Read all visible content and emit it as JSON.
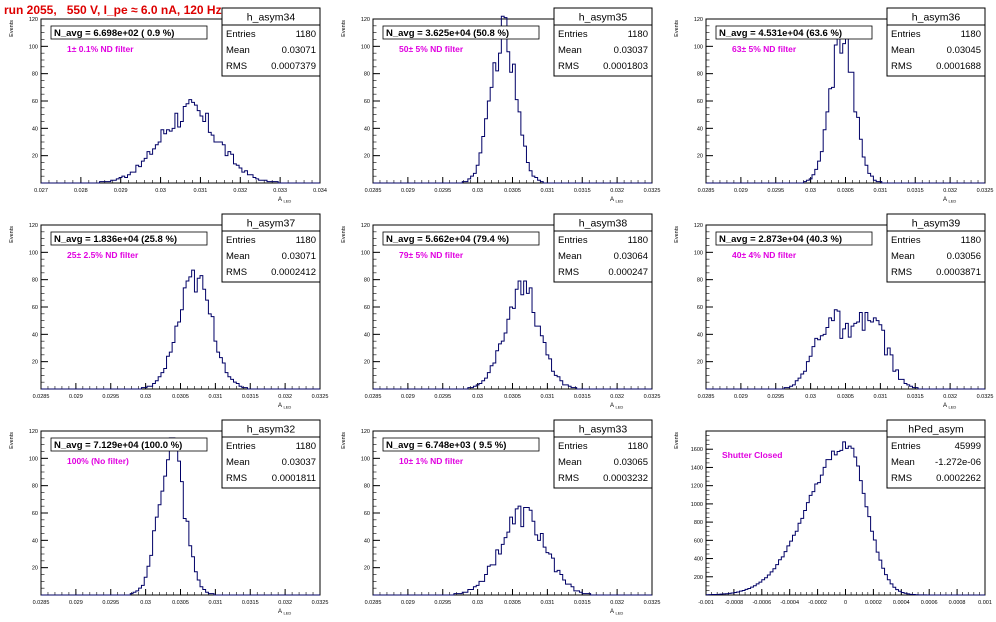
{
  "title": "run 2055,   550 V, I_pe ≈ 6.0 nA, 120 Hz",
  "stat_labels": {
    "entries": "Entries",
    "mean": "Mean",
    "rms": "RMS"
  },
  "chart_data": [
    {
      "type": "bar",
      "name": "h_asym34",
      "header": "N_avg = 6.698e+02 ( 0.9 %)",
      "annotation": "1± 0.1% ND filter",
      "stats": {
        "entries": "1180",
        "mean": "0.03071",
        "rms": "0.0007379"
      },
      "ylabel": "Events",
      "xlabel": "A_LED",
      "xlim": [
        0.027,
        0.034
      ],
      "ylim": [
        0,
        120
      ],
      "xticks": [
        0.027,
        0.028,
        0.029,
        0.03,
        0.031,
        0.032,
        0.033,
        0.034
      ],
      "xtick_labels": [
        "0.027",
        "0.028",
        "0.029",
        "0.03",
        "0.031",
        "0.032",
        "0.033",
        "0.034"
      ],
      "yticks": [
        20,
        40,
        60,
        80,
        100,
        120
      ],
      "dist": {
        "shape": "gauss",
        "mean": 0.03071,
        "rms": 0.0007379,
        "peak": 52,
        "noise": 0.2
      }
    },
    {
      "type": "bar",
      "name": "h_asym35",
      "header": "N_avg = 3.625e+04 (50.8 %)",
      "annotation": "50± 5% ND filter",
      "stats": {
        "entries": "1180",
        "mean": "0.03037",
        "rms": "0.0001803"
      },
      "ylabel": "Events",
      "xlabel": "A_LED",
      "xlim": [
        0.0285,
        0.0325
      ],
      "ylim": [
        0,
        120
      ],
      "xticks": [
        0.0285,
        0.029,
        0.0295,
        0.03,
        0.0305,
        0.031,
        0.0315,
        0.032,
        0.0325
      ],
      "xtick_labels": [
        "0.0285",
        "0.029",
        "0.0295",
        "0.03",
        "0.0305",
        "0.031",
        "0.0315",
        "0.032",
        "0.0325"
      ],
      "yticks": [
        20,
        40,
        60,
        80,
        100,
        120
      ],
      "dist": {
        "shape": "gauss",
        "mean": 0.03037,
        "rms": 0.0001803,
        "peak": 108,
        "noise": 0.15
      }
    },
    {
      "type": "bar",
      "name": "h_asym36",
      "header": "N_avg = 4.531e+04 (63.6 %)",
      "annotation": "63± 5% ND filter",
      "stats": {
        "entries": "1180",
        "mean": "0.03045",
        "rms": "0.0001688"
      },
      "ylabel": "Events",
      "xlabel": "A_LED",
      "xlim": [
        0.0285,
        0.0325
      ],
      "ylim": [
        0,
        120
      ],
      "xticks": [
        0.0285,
        0.029,
        0.0295,
        0.03,
        0.0305,
        0.031,
        0.0315,
        0.032,
        0.0325
      ],
      "xtick_labels": [
        "0.0285",
        "0.029",
        "0.0295",
        "0.03",
        "0.0305",
        "0.031",
        "0.0315",
        "0.032",
        "0.0325"
      ],
      "yticks": [
        20,
        40,
        60,
        80,
        100,
        120
      ],
      "dist": {
        "shape": "gauss",
        "mean": 0.03045,
        "rms": 0.0001688,
        "peak": 110,
        "noise": 0.15
      }
    },
    {
      "type": "bar",
      "name": "h_asym37",
      "header": "N_avg = 1.836e+04 (25.8 %)",
      "annotation": "25± 2.5% ND filter",
      "stats": {
        "entries": "1180",
        "mean": "0.03071",
        "rms": "0.0002412"
      },
      "ylabel": "Events",
      "xlabel": "A_LED",
      "xlim": [
        0.0285,
        0.0325
      ],
      "ylim": [
        0,
        120
      ],
      "xticks": [
        0.0285,
        0.029,
        0.0295,
        0.03,
        0.0305,
        0.031,
        0.0315,
        0.032,
        0.0325
      ],
      "xtick_labels": [
        "0.0285",
        "0.029",
        "0.0295",
        "0.03",
        "0.0305",
        "0.031",
        "0.0315",
        "0.032",
        "0.0325"
      ],
      "yticks": [
        20,
        40,
        60,
        80,
        100,
        120
      ],
      "dist": {
        "shape": "gauss",
        "mean": 0.03071,
        "rms": 0.0002412,
        "peak": 80,
        "noise": 0.15
      }
    },
    {
      "type": "bar",
      "name": "h_asym38",
      "header": "N_avg = 5.662e+04 (79.4 %)",
      "annotation": "79± 5% ND filter",
      "stats": {
        "entries": "1180",
        "mean": "0.03064",
        "rms": "0.000247"
      },
      "ylabel": "Events",
      "xlabel": "A_LED",
      "xlim": [
        0.0285,
        0.0325
      ],
      "ylim": [
        0,
        120
      ],
      "xticks": [
        0.0285,
        0.029,
        0.0295,
        0.03,
        0.0305,
        0.031,
        0.0315,
        0.032,
        0.0325
      ],
      "xtick_labels": [
        "0.0285",
        "0.029",
        "0.0295",
        "0.03",
        "0.0305",
        "0.031",
        "0.0315",
        "0.032",
        "0.0325"
      ],
      "yticks": [
        20,
        40,
        60,
        80,
        100,
        120
      ],
      "dist": {
        "shape": "gauss",
        "mean": 0.03064,
        "rms": 0.000247,
        "peak": 73,
        "noise": 0.15
      }
    },
    {
      "type": "bar",
      "name": "h_asym39",
      "header": "N_avg = 2.873e+04 (40.3 %)",
      "annotation": "40± 4% ND filter",
      "stats": {
        "entries": "1180",
        "mean": "0.03056",
        "rms": "0.0003871"
      },
      "ylabel": "Events",
      "xlabel": "A_LED",
      "xlim": [
        0.0285,
        0.0325
      ],
      "ylim": [
        0,
        120
      ],
      "xticks": [
        0.0285,
        0.029,
        0.0295,
        0.03,
        0.0305,
        0.031,
        0.0315,
        0.032,
        0.0325
      ],
      "xtick_labels": [
        "0.0285",
        "0.029",
        "0.0295",
        "0.03",
        "0.0305",
        "0.031",
        "0.0315",
        "0.032",
        "0.0325"
      ],
      "yticks": [
        20,
        40,
        60,
        80,
        100,
        120
      ],
      "dist": {
        "shape": "double",
        "mean1": 0.03027,
        "mean2": 0.03087,
        "sigma": 0.00022,
        "peak": 50,
        "noise": 0.22
      }
    },
    {
      "type": "bar",
      "name": "h_asym32",
      "header": "N_avg = 7.129e+04 (100.0 %)",
      "annotation": "100% (No filter)",
      "stats": {
        "entries": "1180",
        "mean": "0.03037",
        "rms": "0.0001811"
      },
      "ylabel": "Events",
      "xlabel": "A_LED",
      "xlim": [
        0.0285,
        0.0325
      ],
      "ylim": [
        0,
        120
      ],
      "xticks": [
        0.0285,
        0.029,
        0.0295,
        0.03,
        0.0305,
        0.031,
        0.0315,
        0.032,
        0.0325
      ],
      "xtick_labels": [
        "0.0285",
        "0.029",
        "0.0295",
        "0.03",
        "0.0305",
        "0.031",
        "0.0315",
        "0.032",
        "0.0325"
      ],
      "yticks": [
        20,
        40,
        60,
        80,
        100,
        120
      ],
      "dist": {
        "shape": "gauss",
        "mean": 0.03037,
        "rms": 0.0001811,
        "peak": 110,
        "noise": 0.15
      }
    },
    {
      "type": "bar",
      "name": "h_asym33",
      "header": "N_avg = 6.748e+03 ( 9.5 %)",
      "annotation": "10± 1% ND filter",
      "stats": {
        "entries": "1180",
        "mean": "0.03065",
        "rms": "0.0003232"
      },
      "ylabel": "Events",
      "xlabel": "A_LED",
      "xlim": [
        0.0285,
        0.0325
      ],
      "ylim": [
        0,
        120
      ],
      "xticks": [
        0.0285,
        0.029,
        0.0295,
        0.03,
        0.0305,
        0.031,
        0.0315,
        0.032,
        0.0325
      ],
      "xtick_labels": [
        "0.0285",
        "0.029",
        "0.0295",
        "0.03",
        "0.0305",
        "0.031",
        "0.0315",
        "0.032",
        "0.0325"
      ],
      "yticks": [
        20,
        40,
        60,
        80,
        100,
        120
      ],
      "dist": {
        "shape": "gauss",
        "mean": 0.03065,
        "rms": 0.0003232,
        "peak": 58,
        "noise": 0.18
      }
    },
    {
      "type": "bar",
      "name": "hPed_asym",
      "header": "",
      "annotation": "Shutter Closed",
      "stats": {
        "entries": "45999",
        "mean": "-1.272e-06",
        "rms": "0.0002262"
      },
      "ylabel": "Events",
      "xlabel": "",
      "xlim": [
        -0.001,
        0.001
      ],
      "ylim": [
        0,
        1800
      ],
      "xticks": [
        -0.001,
        -0.0008,
        -0.0006,
        -0.0004,
        -0.0002,
        0,
        0.0002,
        0.0004,
        0.0006,
        0.0008,
        0.001
      ],
      "xtick_labels": [
        "-0.001",
        "-0.0008",
        "-0.0006",
        "-0.0004",
        "-0.0002",
        "0",
        "0.0002",
        "0.0004",
        "0.0006",
        "0.0008",
        "0.001"
      ],
      "yticks": [
        200,
        400,
        600,
        800,
        1000,
        1200,
        1400,
        1600
      ],
      "dist": {
        "shape": "skew",
        "mean": 1e-05,
        "sigma_left": 0.00028,
        "sigma_right": 0.00014,
        "peak": 1640,
        "noise": 0.03
      }
    }
  ]
}
